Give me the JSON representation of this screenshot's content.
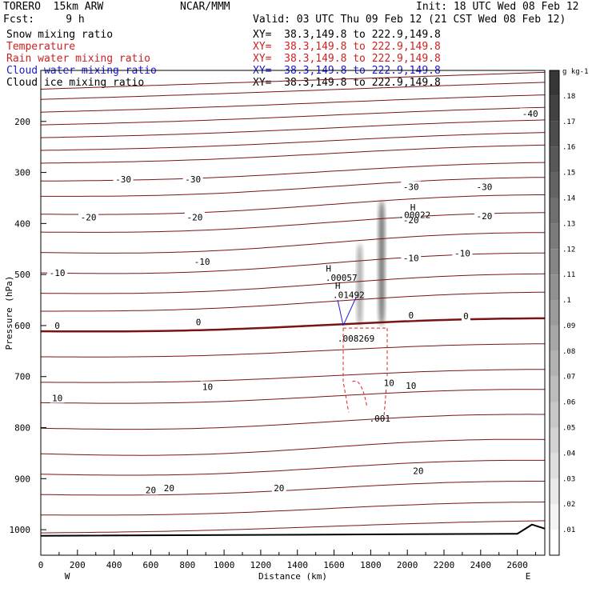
{
  "header": {
    "model": "TORERO  15km ARW",
    "org": "NCAR/MMM",
    "init": "Init: 18 UTC Wed 08 Feb 12",
    "fcst": "Fcst:     9 h",
    "valid": "Valid: 03 UTC Thu 09 Feb 12 (21 CST Wed 08 Feb 12)"
  },
  "fields": [
    {
      "name": "Snow mixing ratio",
      "xy": "XY=  38.3,149.8 to 222.9,149.8",
      "color": "#000000"
    },
    {
      "name": "Temperature",
      "xy": "XY=  38.3,149.8 to 222.9,149.8",
      "color": "#cc2222"
    },
    {
      "name": "Rain water mixing ratio",
      "xy": "XY=  38.3,149.8 to 222.9,149.8",
      "color": "#cc2222"
    },
    {
      "name": "Cloud water mixing ratio",
      "xy": "XY=  38.3,149.8 to 222.9,149.8",
      "color": "#1a1acc"
    },
    {
      "name": "Cloud ice mixing ratio",
      "xy": "XY=  38.3,149.8 to 222.9,149.8",
      "color": "#000000"
    }
  ],
  "chart_data": {
    "type": "contour-cross-section",
    "xlabel": "Distance (km)",
    "ylabel": "Pressure (hPa)",
    "xlim": [
      0,
      2750
    ],
    "ylim": [
      1050,
      100
    ],
    "x_ticks": [
      0,
      200,
      400,
      600,
      800,
      1000,
      1200,
      1400,
      1600,
      1800,
      2000,
      2200,
      2400,
      2600
    ],
    "y_ticks": [
      200,
      300,
      400,
      500,
      600,
      700,
      800,
      900,
      1000
    ],
    "x_end_labels": [
      "W",
      "E"
    ],
    "colorbar": {
      "unit": "g kg-1",
      "ticks": [
        ".01",
        ".02",
        ".03",
        ".04",
        ".05",
        ".06",
        ".07",
        ".08",
        ".09",
        ".1",
        ".11",
        ".12",
        ".13",
        ".14",
        ".15",
        ".16",
        ".17",
        ".18"
      ]
    },
    "temperature_labels": [
      {
        "text": "-40",
        "x": 2670,
        "p": 185
      },
      {
        "text": "-30",
        "x": 450,
        "p": 313
      },
      {
        "text": "-30",
        "x": 830,
        "p": 313
      },
      {
        "text": "-30",
        "x": 2020,
        "p": 328
      },
      {
        "text": "-30",
        "x": 2420,
        "p": 328
      },
      {
        "text": "-20",
        "x": 260,
        "p": 388
      },
      {
        "text": "-20",
        "x": 840,
        "p": 388
      },
      {
        "text": "-20",
        "x": 2020,
        "p": 393
      },
      {
        "text": "-20",
        "x": 2420,
        "p": 385
      },
      {
        "text": "-10",
        "x": 90,
        "p": 497
      },
      {
        "text": "-10",
        "x": 880,
        "p": 475
      },
      {
        "text": "-10",
        "x": 2020,
        "p": 468
      },
      {
        "text": "-10",
        "x": 2300,
        "p": 458
      },
      {
        "text": "0",
        "x": 90,
        "p": 600
      },
      {
        "text": "0",
        "x": 860,
        "p": 593
      },
      {
        "text": "0",
        "x": 2020,
        "p": 580
      },
      {
        "text": "0",
        "x": 2320,
        "p": 581
      },
      {
        "text": "10",
        "x": 90,
        "p": 742
      },
      {
        "text": "10",
        "x": 910,
        "p": 720
      },
      {
        "text": "10",
        "x": 1900,
        "p": 712
      },
      {
        "text": "10",
        "x": 2020,
        "p": 718
      },
      {
        "text": "20",
        "x": 600,
        "p": 922
      },
      {
        "text": "20",
        "x": 700,
        "p": 918
      },
      {
        "text": "20",
        "x": 1300,
        "p": 918
      },
      {
        "text": "20",
        "x": 2060,
        "p": 885
      }
    ],
    "maxima": [
      {
        "text": ".00057",
        "x": 1640,
        "p": 506,
        "color": "#000000"
      },
      {
        "text": ".01492",
        "x": 1680,
        "p": 540,
        "color": "#1a1acc"
      },
      {
        "text": ".00022",
        "x": 2040,
        "p": 383,
        "color": "#000000"
      },
      {
        "text": ".008269",
        "x": 1720,
        "p": 625,
        "color": "#cc2222"
      },
      {
        "text": ".001",
        "x": 1850,
        "p": 782,
        "color": "#cc2222"
      }
    ],
    "high_markers": [
      {
        "text": "H",
        "x": 1570,
        "p": 488,
        "color": "#000000"
      },
      {
        "text": "H",
        "x": 1620,
        "p": 522,
        "color": "#1a1acc"
      },
      {
        "text": "H",
        "x": 2030,
        "p": 368,
        "color": "#000000"
      }
    ],
    "snow_cores": [
      {
        "x": 1740,
        "p_top": 440,
        "p_bottom": 600,
        "width_km": 40,
        "max": 0.1
      },
      {
        "x": 1860,
        "p_top": 355,
        "p_bottom": 600,
        "width_km": 45,
        "max": 0.16
      }
    ]
  }
}
